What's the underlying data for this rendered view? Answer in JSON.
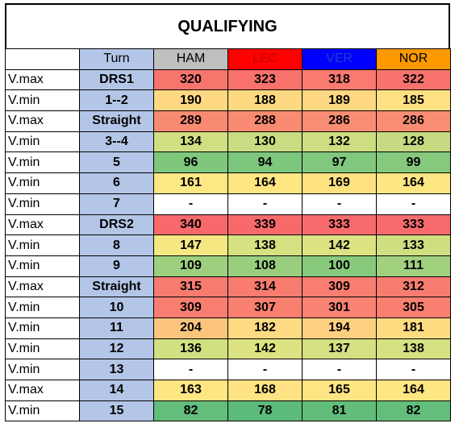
{
  "title": "QUALIFYING",
  "header": {
    "label": "",
    "turn": "Turn",
    "drivers": [
      {
        "code": "HAM",
        "color": "#bfbfbf",
        "text_color": "#000000"
      },
      {
        "code": "LEC",
        "color": "#ff0000",
        "text_color": "#c00000"
      },
      {
        "code": "VER",
        "color": "#0000ff",
        "text_color": "#1f3fbf"
      },
      {
        "code": "NOR",
        "color": "#ff9900",
        "text_color": "#000000"
      }
    ]
  },
  "colors": {
    "red": "#f8696b",
    "orange": "#f8a17a",
    "yellow_light": "#fcd783",
    "yellow": "#fee883",
    "yellow_green": "#d5e182",
    "green_light": "#b5d680",
    "green": "#7fc77e",
    "white": "#ffffff",
    "turn_col": "#b4c6e7"
  },
  "rows": [
    {
      "label": "V.max",
      "turn": "DRS1",
      "values": [
        "320",
        "323",
        "318",
        "322"
      ],
      "colors": [
        "#f8756e",
        "#f8716c",
        "#f97a70",
        "#f8736d"
      ]
    },
    {
      "label": "V.min",
      "turn": "1--2",
      "values": [
        "190",
        "188",
        "189",
        "185"
      ],
      "colors": [
        "#fed882",
        "#fed982",
        "#fed882",
        "#fee183"
      ]
    },
    {
      "label": "V.max",
      "turn": "Straight",
      "values": [
        "289",
        "288",
        "286",
        "286"
      ],
      "colors": [
        "#f98a72",
        "#f98b72",
        "#f98d73",
        "#f98d73"
      ]
    },
    {
      "label": "V.min",
      "turn": "3--4",
      "values": [
        "134",
        "130",
        "132",
        "128"
      ],
      "colors": [
        "#d1df82",
        "#c9dc81",
        "#cddd81",
        "#c5da81"
      ]
    },
    {
      "label": "V.min",
      "turn": "5",
      "values": [
        "96",
        "94",
        "97",
        "99"
      ],
      "colors": [
        "#80c77e",
        "#7dc67d",
        "#82c87e",
        "#86c97e"
      ]
    },
    {
      "label": "V.min",
      "turn": "6",
      "values": [
        "161",
        "164",
        "169",
        "164"
      ],
      "colors": [
        "#fee883",
        "#fee683",
        "#fee282",
        "#fee683"
      ]
    },
    {
      "label": "V.min",
      "turn": "7",
      "values": [
        "-",
        "-",
        "-",
        "-"
      ],
      "colors": [
        "#ffffff",
        "#ffffff",
        "#ffffff",
        "#ffffff"
      ]
    },
    {
      "label": "V.max",
      "turn": "DRS2",
      "values": [
        "340",
        "339",
        "333",
        "333"
      ],
      "colors": [
        "#f8696b",
        "#f8696b",
        "#f86b6c",
        "#f86b6c"
      ]
    },
    {
      "label": "V.min",
      "turn": "8",
      "values": [
        "147",
        "138",
        "142",
        "133"
      ],
      "colors": [
        "#f5e883",
        "#d6e182",
        "#dde382",
        "#cfde81"
      ]
    },
    {
      "label": "V.min",
      "turn": "9",
      "values": [
        "109",
        "108",
        "100",
        "111"
      ],
      "colors": [
        "#9dcf7f",
        "#9ace7f",
        "#88c97e",
        "#a1d07f"
      ]
    },
    {
      "label": "V.max",
      "turn": "Straight",
      "values": [
        "315",
        "314",
        "309",
        "312"
      ],
      "colors": [
        "#f87b70",
        "#f87c70",
        "#f97e71",
        "#f87d70"
      ]
    },
    {
      "label": "V.min",
      "turn": "10",
      "values": [
        "309",
        "307",
        "301",
        "305"
      ],
      "colors": [
        "#f97e71",
        "#f97f71",
        "#f98372",
        "#f98071"
      ]
    },
    {
      "label": "V.min",
      "turn": "11",
      "values": [
        "204",
        "182",
        "194",
        "181"
      ],
      "colors": [
        "#fcc57e",
        "#fedb82",
        "#fdd080",
        "#fedc82"
      ]
    },
    {
      "label": "V.min",
      "turn": "12",
      "values": [
        "136",
        "142",
        "137",
        "138"
      ],
      "colors": [
        "#d3e082",
        "#dde382",
        "#d5e082",
        "#d6e182"
      ]
    },
    {
      "label": "V.min",
      "turn": "13",
      "values": [
        "-",
        "-",
        "-",
        "-"
      ],
      "colors": [
        "#ffffff",
        "#ffffff",
        "#ffffff",
        "#ffffff"
      ]
    },
    {
      "label": "V.max",
      "turn": "14",
      "values": [
        "163",
        "168",
        "165",
        "164"
      ],
      "colors": [
        "#fee683",
        "#fee283",
        "#fee583",
        "#fee683"
      ]
    },
    {
      "label": "V.min",
      "turn": "15",
      "values": [
        "82",
        "78",
        "81",
        "82"
      ],
      "colors": [
        "#63be7b",
        "#5cbb7a",
        "#62bd7b",
        "#63be7b"
      ]
    }
  ]
}
